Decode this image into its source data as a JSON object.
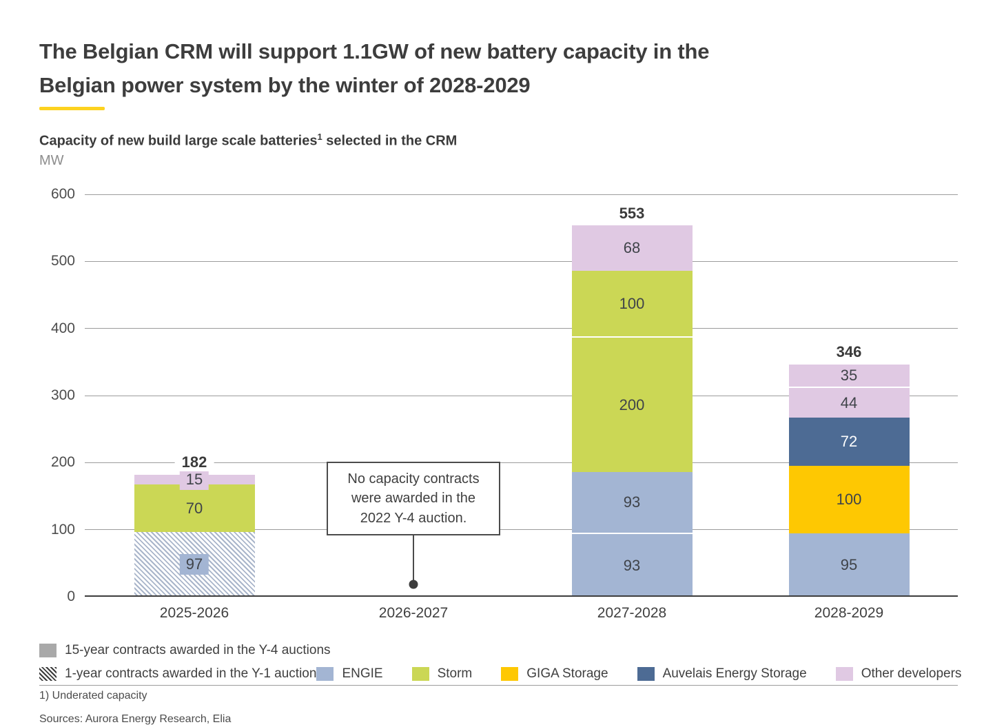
{
  "title": {
    "line1": "The Belgian CRM will support 1.1GW of new battery capacity in the",
    "line2": "Belgian power system by the winter of 2028-2029"
  },
  "subtitle": {
    "text": "Capacity of new build large scale batteries",
    "sup": "1",
    "suffix": " selected in the CRM"
  },
  "unit_label": "MW",
  "footnote": "1) Underated capacity",
  "sources": "Sources: Aurora Energy Research, Elia",
  "colors": {
    "engie": "#a3b5d3",
    "storm": "#cbd755",
    "giga": "#fec802",
    "auvelais": "#4d6b94",
    "other": "#e0c9e3",
    "y4_contracts": "#a9a9a9",
    "accent_yellow": "#fdd220",
    "hatch_stripe": "#a9b5ca",
    "grid": "#9b9b9b",
    "baseline": "#3c3c3c"
  },
  "legend": {
    "y4_label": "15-year contracts awarded in the Y-4 auctions",
    "y1_label": "1-year contracts awarded in the Y-1 auction",
    "series": [
      {
        "name": "ENGIE",
        "color": "engie"
      },
      {
        "name": "Storm",
        "color": "storm"
      },
      {
        "name": "GIGA Storage",
        "color": "giga"
      },
      {
        "name": "Auvelais Energy Storage",
        "color": "auvelais"
      },
      {
        "name": "Other developers",
        "color": "other"
      }
    ]
  },
  "chart_data": {
    "type": "bar",
    "stacked": true,
    "title": "Capacity of new build large scale batteries selected in the CRM",
    "ylabel": "MW",
    "ylim": [
      0,
      600
    ],
    "ytick_step": 100,
    "grid": true,
    "legend_position": "bottom",
    "categories": [
      "2025-2026",
      "2026-2027",
      "2027-2028",
      "2028-2029"
    ],
    "bars": [
      {
        "category": "2025-2026",
        "total": 182,
        "segments": [
          {
            "value": 97,
            "series": "1-year contracts awarded in the Y-1 auction",
            "color": "engie",
            "hatch": true,
            "label_bg": true
          },
          {
            "value": 70,
            "series": "Storm",
            "color": "storm"
          },
          {
            "value": 15,
            "series": "Other developers",
            "color": "other",
            "label_bg": true
          }
        ]
      },
      {
        "category": "2026-2027",
        "total": 0,
        "segments": [],
        "annotation": "No capacity contracts were awarded in the 2022 Y-4 auction."
      },
      {
        "category": "2027-2028",
        "total": 553,
        "segments": [
          {
            "value": 93,
            "series": "ENGIE",
            "color": "engie"
          },
          {
            "value": 93,
            "series": "ENGIE",
            "color": "engie"
          },
          {
            "value": 200,
            "series": "Storm",
            "color": "storm"
          },
          {
            "value": 100,
            "series": "Storm",
            "color": "storm"
          },
          {
            "value": 68,
            "series": "Other developers",
            "color": "other"
          }
        ]
      },
      {
        "category": "2028-2029",
        "total": 346,
        "segments": [
          {
            "value": 95,
            "series": "ENGIE",
            "color": "engie"
          },
          {
            "value": 100,
            "series": "GIGA Storage",
            "color": "giga"
          },
          {
            "value": 72,
            "series": "Auvelais Energy Storage",
            "color": "auvelais",
            "text_color": "#ffffff"
          },
          {
            "value": 44,
            "series": "Other developers",
            "color": "other"
          },
          {
            "value": 35,
            "series": "Other developers",
            "color": "other"
          }
        ]
      }
    ],
    "annotation": {
      "text": "No capacity contracts were awarded in the 2022 Y-4 auction.",
      "category": "2026-2027"
    }
  }
}
